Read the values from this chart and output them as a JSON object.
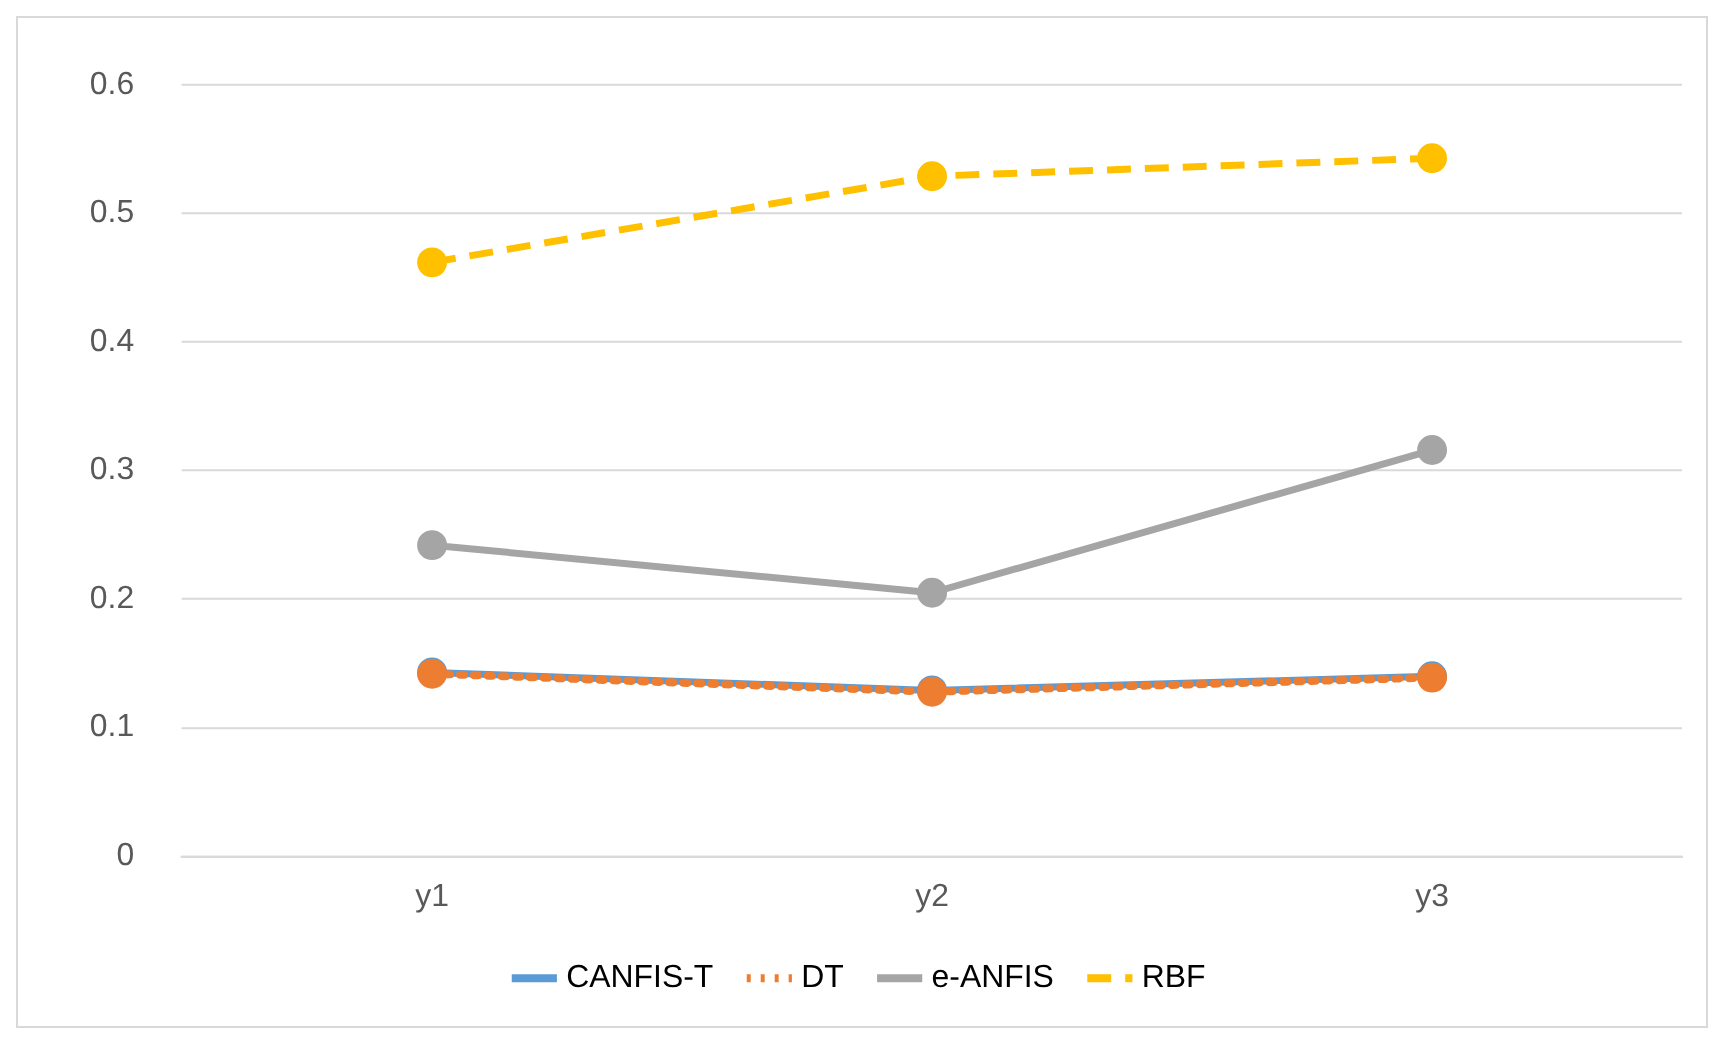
{
  "chart_data": {
    "type": "line",
    "categories": [
      "y1",
      "y2",
      "y3"
    ],
    "series": [
      {
        "name": "CANFIS-T",
        "color": "#5b9bd5",
        "values": [
          0.143,
          0.129,
          0.14
        ],
        "line_style": "solid"
      },
      {
        "name": "DT",
        "color": "#ed7d31",
        "values": [
          0.142,
          0.128,
          0.139
        ],
        "line_style": "dotted"
      },
      {
        "name": "e-ANFIS",
        "color": "#a5a5a5",
        "values": [
          0.242,
          0.205,
          0.316
        ],
        "line_style": "solid"
      },
      {
        "name": "RBF",
        "color": "#ffc000",
        "values": [
          0.462,
          0.529,
          0.543
        ],
        "line_style": "dashed"
      }
    ],
    "ylim": [
      0,
      0.6
    ],
    "yticks": [
      0,
      0.1,
      0.2,
      0.3,
      0.4,
      0.5,
      0.6
    ],
    "grid": "y",
    "legend": "bottom",
    "marker": "circle"
  }
}
